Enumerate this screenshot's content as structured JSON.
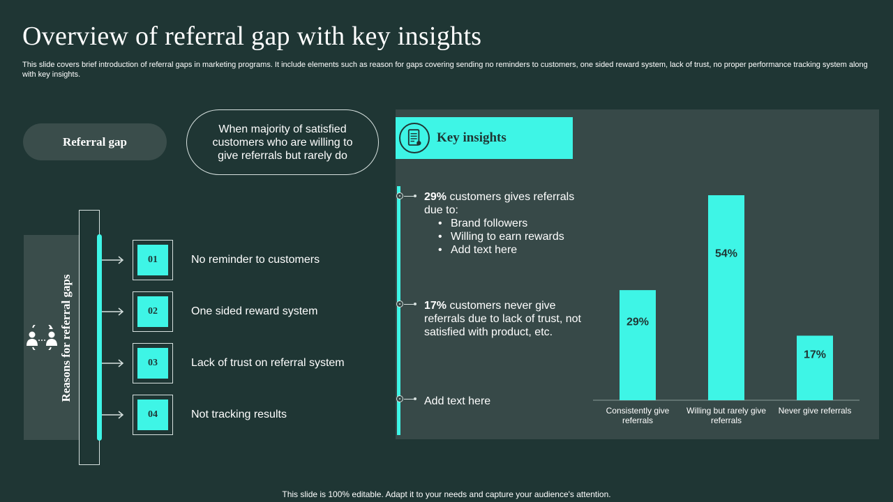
{
  "title": "Overview of referral gap with key insights",
  "subtitle": "This slide covers brief introduction of referral gaps in marketing programs. It include elements such as reason for gaps covering sending no reminders to customers, one sided reward system, lack of trust, no proper performance tracking system along with key insights.",
  "referral_gap": {
    "label": "Referral gap",
    "definition": "When majority of satisfied customers who are willing to give referrals but rarely do"
  },
  "reasons": {
    "label": "Reasons for referral gaps",
    "items": [
      {
        "number": "01",
        "text": "No reminder to customers"
      },
      {
        "number": "02",
        "text": "One sided reward system"
      },
      {
        "number": "03",
        "text": "Lack of trust  on referral system"
      },
      {
        "number": "04",
        "text": "Not tracking results"
      }
    ]
  },
  "insights": {
    "title": "Key insights",
    "item1": {
      "highlight": "29%",
      "text": " customers gives referrals due to:",
      "bullets": [
        "Brand followers",
        "Willing to earn rewards",
        "Add text here"
      ]
    },
    "item2": {
      "highlight": "17%",
      "text": " customers never  give referrals due to lack of trust, not satisfied with product, etc."
    },
    "item3": {
      "text": "Add text here"
    }
  },
  "chart_data": {
    "type": "bar",
    "categories": [
      "Consistently give referrals",
      "Willing but rarely give referrals",
      "Never give referrals"
    ],
    "values": [
      29,
      54,
      17
    ],
    "value_labels": [
      "29%",
      "54%",
      "17%"
    ],
    "ylim": [
      0,
      54
    ],
    "grid": false
  },
  "colors": {
    "background": "#1f3634",
    "accent": "#3ef5e6",
    "panel": "#374948"
  },
  "footer": "This slide is 100% editable. Adapt it to your needs and capture your audience's attention."
}
